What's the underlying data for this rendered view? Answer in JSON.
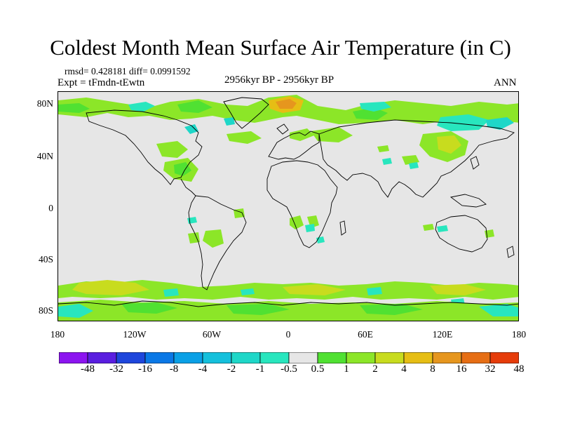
{
  "title": "Coldest Month Mean Surface Air Temperature (in C)",
  "stats": "rmsd= 0.428181 diff= 0.0991592",
  "experiment": "Expt = tFmdn-tEwtn",
  "period": "2956kyr BP - 2956kyr BP",
  "season": "ANN",
  "latitude_ticks": [
    "80N",
    "40N",
    "0",
    "40S",
    "80S"
  ],
  "longitude_ticks": [
    "180",
    "120W",
    "60W",
    "0",
    "60E",
    "120E",
    "180"
  ],
  "colorbar": {
    "labels": [
      "-48",
      "-32",
      "-16",
      "-8",
      "-4",
      "-2",
      "-1",
      "-0.5",
      "0.5",
      "1",
      "2",
      "4",
      "8",
      "16",
      "32",
      "48"
    ],
    "colors": [
      "#8c14f0",
      "#5a1ee0",
      "#1e46dc",
      "#0a78e6",
      "#0aa0e6",
      "#14c0dc",
      "#1ed7c8",
      "#28e6be",
      "#e6e6e6",
      "#50e132",
      "#8ce628",
      "#c8dc1e",
      "#e6be14",
      "#e6961e",
      "#e66e14",
      "#e63c0a"
    ]
  },
  "colors": {
    "background": "#e6e6e6",
    "coastline": "#000000"
  }
}
